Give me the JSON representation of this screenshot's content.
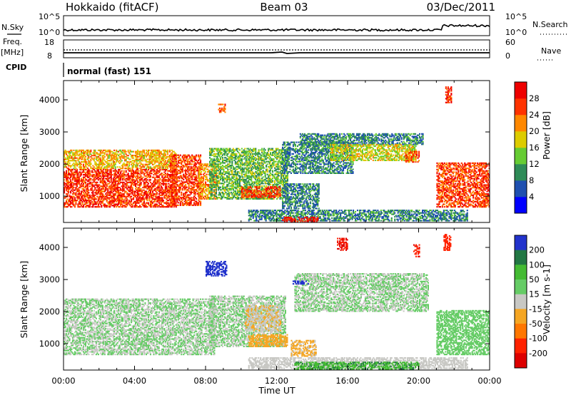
{
  "header": {
    "radar": "Hokkaido (fitACF)",
    "beam": "Beam 03",
    "date": "03/Dec/2011"
  },
  "top_panels": {
    "nsky_label": "N.Sky",
    "nsearch_label": "N.Search",
    "noise_ticks": [
      "10^5",
      "10^0"
    ],
    "freq_label_1": "Freq.",
    "freq_label_2": "[MHz]",
    "freq_ticks": [
      "18",
      "8"
    ],
    "nave_label": "Nave",
    "nave_ticks": [
      "60",
      "0"
    ],
    "cpid_label": "CPID",
    "cpid_value": "normal (fast) 151"
  },
  "power_panel": {
    "ylabel": "Slant Range [km]",
    "colorbar_label": "Power [dB]",
    "colorbar_ticks": [
      "28",
      "24",
      "20",
      "16",
      "12",
      "8",
      "4"
    ],
    "colors": [
      "#0000ff",
      "#1f50b0",
      "#2e8b57",
      "#66cc33",
      "#ddcc00",
      "#ff8800",
      "#ff3300",
      "#ee0000"
    ]
  },
  "velocity_panel": {
    "ylabel": "Slant Range [km]",
    "colorbar_label": "Velocity [m s-1]",
    "colorbar_ticks": [
      "200",
      "100",
      "50",
      "15",
      "-15",
      "-50",
      "-100",
      "-200"
    ],
    "colors": [
      "#2233cc",
      "#227744",
      "#44bb33",
      "#66cc66",
      "#c8c8c4",
      "#f5a623",
      "#ff7700",
      "#ff2200",
      "#dd0000"
    ]
  },
  "xaxis": {
    "label": "Time UT",
    "ticks": [
      "00:00",
      "04:00",
      "08:00",
      "12:00",
      "16:00",
      "20:00",
      "00:00"
    ]
  },
  "chart_data": [
    {
      "type": "heatmap",
      "title": "Power [dB]",
      "xlabel": "Time UT",
      "ylabel": "Slant Range [km]",
      "xlim": [
        0,
        24
      ],
      "ylim": [
        180,
        4600
      ],
      "yticks": [
        1000,
        2000,
        3000,
        4000
      ],
      "clim": [
        0,
        32
      ],
      "regions": [
        {
          "t": [
            0.0,
            6.3
          ],
          "r": [
            650,
            1850
          ],
          "value": 27
        },
        {
          "t": [
            0.0,
            6.3
          ],
          "r": [
            1850,
            2450
          ],
          "value": 20
        },
        {
          "t": [
            6.0,
            7.7
          ],
          "r": [
            700,
            2300
          ],
          "value": 26
        },
        {
          "t": [
            7.6,
            8.6
          ],
          "r": [
            900,
            2000
          ],
          "value": 22
        },
        {
          "t": [
            8.2,
            12.6
          ],
          "r": [
            900,
            2500
          ],
          "value": 13
        },
        {
          "t": [
            10.0,
            12.2
          ],
          "r": [
            950,
            1300
          ],
          "value": 26
        },
        {
          "t": [
            12.3,
            14.4
          ],
          "r": [
            600,
            1400
          ],
          "value": 9
        },
        {
          "t": [
            12.3,
            16.3
          ],
          "r": [
            1700,
            2700
          ],
          "value": 9
        },
        {
          "t": [
            13.3,
            20.2
          ],
          "r": [
            2600,
            2950
          ],
          "value": 9
        },
        {
          "t": [
            15.0,
            19.8
          ],
          "r": [
            2100,
            2600
          ],
          "value": 17
        },
        {
          "t": [
            19.2,
            20.0
          ],
          "r": [
            2050,
            2400
          ],
          "value": 24
        },
        {
          "t": [
            10.4,
            22.7
          ],
          "r": [
            220,
            560
          ],
          "value": 9
        },
        {
          "t": [
            12.3,
            14.3
          ],
          "r": [
            200,
            330
          ],
          "value": 29
        },
        {
          "t": [
            21.0,
            24.0
          ],
          "r": [
            650,
            2050
          ],
          "value": 26
        },
        {
          "t": [
            8.7,
            9.1
          ],
          "r": [
            3600,
            3850
          ],
          "value": 25
        },
        {
          "t": [
            21.5,
            21.8
          ],
          "r": [
            3900,
            4400
          ],
          "value": 27
        }
      ]
    },
    {
      "type": "heatmap",
      "title": "Velocity [m s-1]",
      "xlabel": "Time UT",
      "ylabel": "Slant Range [km]",
      "xlim": [
        0,
        24
      ],
      "ylim": [
        180,
        4600
      ],
      "yticks": [
        1000,
        2000,
        3000,
        4000
      ],
      "clim": [
        -250,
        250
      ],
      "regions": [
        {
          "t": [
            0.0,
            8.5
          ],
          "r": [
            650,
            2400
          ],
          "value": 0
        },
        {
          "t": [
            8.2,
            12.5
          ],
          "r": [
            900,
            2500
          ],
          "value": 0
        },
        {
          "t": [
            10.2,
            12.2
          ],
          "r": [
            1400,
            2200
          ],
          "value": -30
        },
        {
          "t": [
            10.4,
            12.6
          ],
          "r": [
            900,
            1300
          ],
          "value": -40
        },
        {
          "t": [
            12.8,
            14.2
          ],
          "r": [
            600,
            1100
          ],
          "value": -35
        },
        {
          "t": [
            13.0,
            20.5
          ],
          "r": [
            2000,
            3200
          ],
          "value": 0
        },
        {
          "t": [
            10.4,
            22.7
          ],
          "r": [
            220,
            560
          ],
          "value": -20
        },
        {
          "t": [
            13.0,
            20.0
          ],
          "r": [
            200,
            420
          ],
          "value": 60
        },
        {
          "t": [
            8.0,
            9.2
          ],
          "r": [
            3100,
            3550
          ],
          "value": 180
        },
        {
          "t": [
            12.9,
            13.8
          ],
          "r": [
            2850,
            2950
          ],
          "value": 190
        },
        {
          "t": [
            21.0,
            24.0
          ],
          "r": [
            650,
            2050
          ],
          "value": 10
        },
        {
          "t": [
            15.4,
            16.0
          ],
          "r": [
            3900,
            4300
          ],
          "value": -220
        },
        {
          "t": [
            21.4,
            21.8
          ],
          "r": [
            3900,
            4400
          ],
          "value": -180
        },
        {
          "t": [
            19.7,
            20.0
          ],
          "r": [
            3700,
            4100
          ],
          "value": -200
        }
      ]
    }
  ]
}
